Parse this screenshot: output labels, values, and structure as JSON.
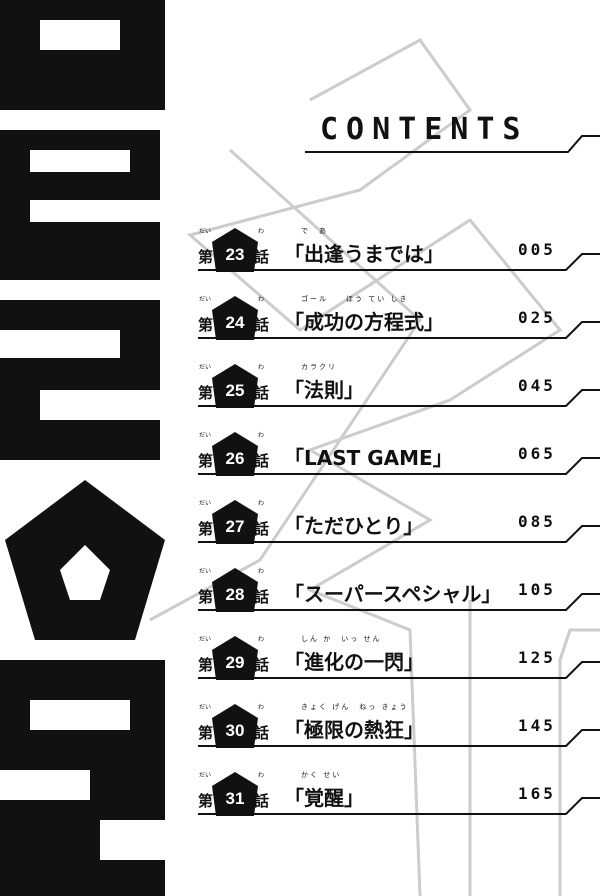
{
  "header": {
    "title": "CONTENTS"
  },
  "logo_text": "BLUE LOCK",
  "chapter_prefix": "第",
  "chapter_suffix": "話",
  "prefix_ruby": "だい",
  "suffix_ruby": "わ",
  "chapters": [
    {
      "number": "23",
      "title": "「出逢うまでは」",
      "ruby": "で　あ",
      "page": "005"
    },
    {
      "number": "24",
      "title": "「成功の方程式」",
      "ruby": "ゴール　　ほう てい しき",
      "page": "025"
    },
    {
      "number": "25",
      "title": "「法則」",
      "ruby": "カラクリ",
      "page": "045"
    },
    {
      "number": "26",
      "title": "「LAST GAME」",
      "ruby": "",
      "page": "065"
    },
    {
      "number": "27",
      "title": "「ただひとり」",
      "ruby": "",
      "page": "085"
    },
    {
      "number": "28",
      "title": "「スーパースペシャル」",
      "ruby": "",
      "page": "105"
    },
    {
      "number": "29",
      "title": "「進化の一閃」",
      "ruby": "しん か　いっ せん",
      "page": "125"
    },
    {
      "number": "30",
      "title": "「極限の熱狂」",
      "ruby": "きょく げん　ねっ きょう",
      "page": "145"
    },
    {
      "number": "31",
      "title": "「覚醒」",
      "ruby": "かく せい",
      "page": "165"
    }
  ]
}
